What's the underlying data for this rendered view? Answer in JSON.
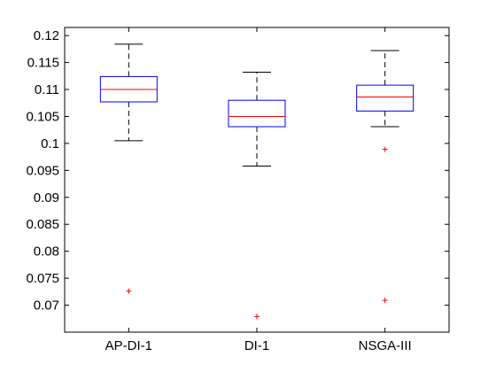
{
  "chart_data": {
    "type": "boxplot",
    "title": "",
    "xlabel": "",
    "ylabel": "",
    "categories": [
      "AP-DI-1",
      "DI-1",
      "NSGA-III"
    ],
    "ylim": [
      0.065,
      0.1215
    ],
    "yticks": [
      0.07,
      0.075,
      0.08,
      0.085,
      0.09,
      0.095,
      0.1,
      0.105,
      0.11,
      0.115,
      0.12
    ],
    "ytick_labels": [
      "0.07",
      "0.075",
      "0.08",
      "0.085",
      "0.09",
      "0.095",
      "0.1",
      "0.105",
      "0.11",
      "0.115",
      "0.12"
    ],
    "grid": false,
    "boxes": [
      {
        "label": "AP-DI-1",
        "whisker_low": 0.1005,
        "q1": 0.1077,
        "median": 0.11,
        "q3": 0.1124,
        "whisker_high": 0.1184,
        "outliers": [
          0.0726
        ]
      },
      {
        "label": "DI-1",
        "whisker_low": 0.0958,
        "q1": 0.1031,
        "median": 0.105,
        "q3": 0.108,
        "whisker_high": 0.1132,
        "outliers": [
          0.0679
        ]
      },
      {
        "label": "NSGA-III",
        "whisker_low": 0.1031,
        "q1": 0.106,
        "median": 0.1086,
        "q3": 0.1108,
        "whisker_high": 0.1172,
        "outliers": [
          0.0989,
          0.0709
        ]
      }
    ],
    "colors": {
      "box": "#0000ff",
      "median": "#ff0000",
      "whisker": "#000000",
      "outlier": "#ff0000",
      "axis": "#000000"
    }
  }
}
